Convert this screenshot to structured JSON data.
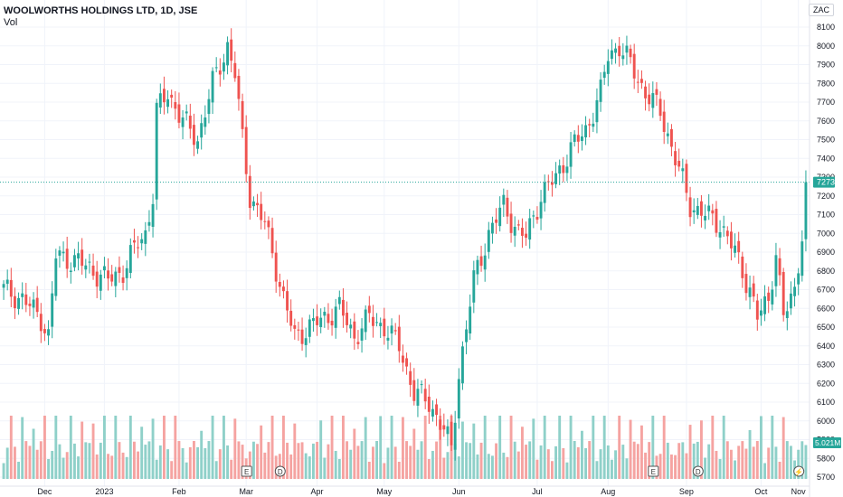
{
  "header": {
    "symbol_title": "WOOLWORTHS HOLDINGS LTD, 1D, JSE",
    "volume_label": "Vol",
    "currency": "ZAC"
  },
  "colors": {
    "up": "#26a69a",
    "down": "#ef5350",
    "up_volume": "#8fd0c9",
    "down_volume": "#f5a3a1",
    "price_line": "#26a69a",
    "grid": "#f0f3fa",
    "axis_text": "#131722"
  },
  "chart_data": {
    "type": "candlestick",
    "title": "WOOLWORTHS HOLDINGS LTD, 1D, JSE",
    "ylim": [
      5700,
      8150
    ],
    "y_ticks": [
      8100,
      8000,
      7900,
      7800,
      7700,
      7600,
      7500,
      7400,
      7300,
      7200,
      7100,
      7000,
      6900,
      6800,
      6700,
      6600,
      6500,
      6400,
      6300,
      6200,
      6100,
      6000,
      5900,
      5800,
      5700
    ],
    "x_ticks": [
      "Dec",
      "2023",
      "Feb",
      "Mar",
      "Apr",
      "May",
      "Jun",
      "Jul",
      "Aug",
      "Sep",
      "Oct",
      "Nov"
    ],
    "last_price": 7273,
    "last_volume": "5.021M",
    "event_markers": [
      {
        "label": "E",
        "x_index": 65
      },
      {
        "label": "D",
        "x_index": 74
      },
      {
        "label": "E",
        "x_index": 174
      },
      {
        "label": "D",
        "x_index": 186
      },
      {
        "label": "⚡",
        "x_index": 213
      }
    ],
    "volume_relative_max": 1.0,
    "candles": []
  }
}
